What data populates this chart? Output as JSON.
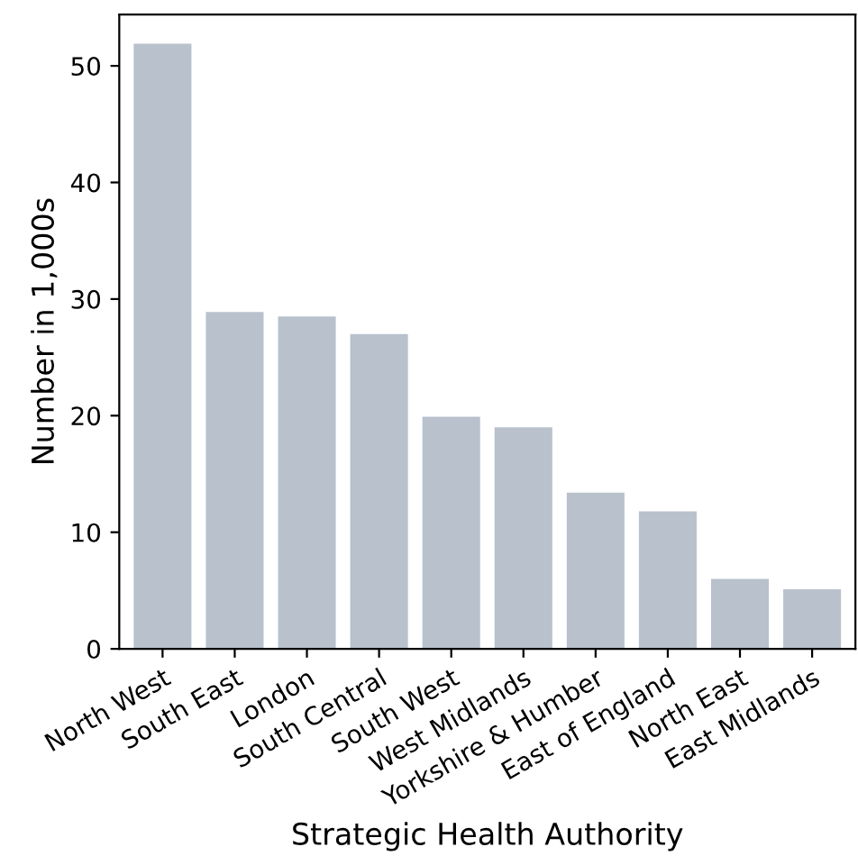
{
  "chart_data": {
    "type": "bar",
    "xlabel": "Strategic Health Authority",
    "ylabel": "Number in 1,000s",
    "categories": [
      "North West",
      "South East",
      "London",
      "South Central",
      "South West",
      "West Midlands",
      "Yorkshire & Humber",
      "East of England",
      "North East",
      "East Midlands"
    ],
    "values": [
      51.9,
      28.9,
      28.5,
      27.0,
      19.9,
      19.0,
      13.4,
      11.8,
      6.0,
      5.1
    ],
    "color": "#b8c1cc",
    "ylim": [
      0,
      54.4
    ],
    "yticks": [
      0,
      10,
      20,
      30,
      40,
      50
    ],
    "grid": false
  }
}
